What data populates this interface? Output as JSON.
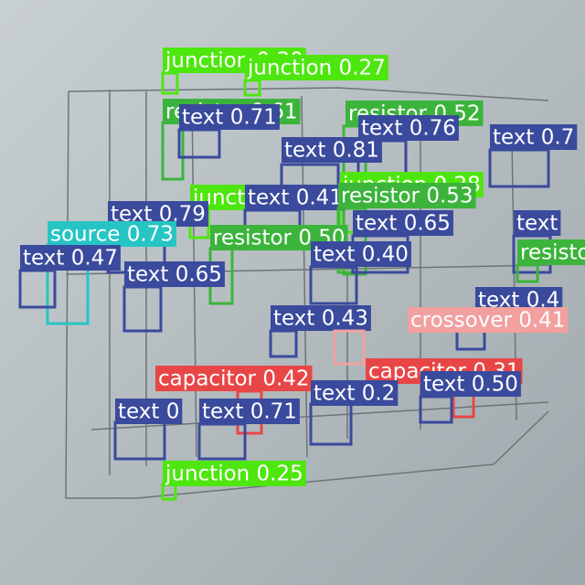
{
  "detections": [
    {
      "label": "junction 0.30",
      "color": "#4ee60f"
    },
    {
      "label": "junction 0.27",
      "color": "#4ee60f"
    },
    {
      "label": "resistor 0.61",
      "color": "#3cb43c"
    },
    {
      "label": "text 0.71",
      "color": "#3a4a9c"
    },
    {
      "label": "resistor 0.52",
      "color": "#3cb43c"
    },
    {
      "label": "text 0.76",
      "color": "#3a4a9c"
    },
    {
      "label": "text 0.81",
      "color": "#3a4a9c"
    },
    {
      "label": "text 0.7",
      "color": "#3a4a9c"
    },
    {
      "label": "junction 0.28",
      "color": "#4ee60f"
    },
    {
      "label": "junction",
      "color": "#4ee60f"
    },
    {
      "label": "text 0.41",
      "color": "#3a4a9c"
    },
    {
      "label": "resistor 0.53",
      "color": "#3cb43c"
    },
    {
      "label": "text 0.79",
      "color": "#3a4a9c"
    },
    {
      "label": "text 0.65",
      "color": "#3a4a9c"
    },
    {
      "label": "text",
      "color": "#3a4a9c"
    },
    {
      "label": "source 0.73",
      "color": "#27c4c4"
    },
    {
      "label": "resistor 0.50",
      "color": "#3cb43c"
    },
    {
      "label": "text 0.47",
      "color": "#3a4a9c"
    },
    {
      "label": "text 0.40",
      "color": "#3a4a9c"
    },
    {
      "label": "text 0.65",
      "color": "#3a4a9c"
    },
    {
      "label": "resistor",
      "color": "#3cb43c"
    },
    {
      "label": "text 0.4",
      "color": "#3a4a9c"
    },
    {
      "label": "text 0.43",
      "color": "#3a4a9c"
    },
    {
      "label": "crossover 0.41",
      "color": "#f2a0a0"
    },
    {
      "label": "capacitor 0.42",
      "color": "#e84646"
    },
    {
      "label": "capacitor 0.31",
      "color": "#e84646"
    },
    {
      "label": "text 0.2",
      "color": "#3a4a9c"
    },
    {
      "label": "text 0.50",
      "color": "#3a4a9c"
    },
    {
      "label": "text 0",
      "color": "#3a4a9c"
    },
    {
      "label": "text 0.71",
      "color": "#3a4a9c"
    },
    {
      "label": "junction 0.25",
      "color": "#4ee60f"
    }
  ]
}
